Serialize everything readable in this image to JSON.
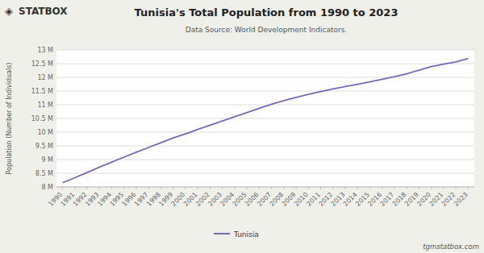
{
  "chart_data": {
    "type": "line",
    "title": "Tunisia's Total Population from 1990 to 2023",
    "subtitle": "Data Source: World Development Indicators.",
    "y_label": "Population (Number of Individuals)",
    "annotations": [
      "◈",
      "STATBOX",
      "tgmstatbox.com"
    ],
    "x": [
      1990,
      1991,
      1992,
      1993,
      1994,
      1995,
      1996,
      1997,
      1998,
      1999,
      2000,
      2001,
      2002,
      2003,
      2004,
      2005,
      2006,
      2007,
      2008,
      2009,
      2010,
      2011,
      2012,
      2013,
      2014,
      2015,
      2016,
      2017,
      2018,
      2019,
      2020,
      2021,
      2022,
      2023
    ],
    "series": [
      {
        "name": "Tunisia",
        "color": "#7B68B5",
        "values": [
          8154000,
          8337000,
          8528000,
          8723000,
          8906000,
          9089000,
          9267000,
          9441000,
          9616000,
          9788000,
          9940000,
          10100000,
          10255000,
          10408000,
          10560000,
          10714000,
          10870000,
          11019000,
          11153000,
          11271000,
          11382000,
          11483000,
          11577000,
          11665000,
          11747000,
          11836000,
          11928000,
          12024000,
          12131000,
          12263000,
          12393000,
          12479000,
          12565000,
          12687000
        ]
      }
    ],
    "xlim": [
      1989.5,
      2023.5
    ],
    "xticks": [
      1990,
      1991,
      1992,
      1993,
      1994,
      1995,
      1996,
      1997,
      1998,
      1999,
      2000,
      2001,
      2002,
      2003,
      2004,
      2005,
      2006,
      2007,
      2008,
      2009,
      2010,
      2011,
      2012,
      2013,
      2014,
      2015,
      2016,
      2017,
      2018,
      2019,
      2020,
      2021,
      2022,
      2023
    ],
    "ylim": [
      8000000,
      13000000
    ],
    "yticks": [
      {
        "value": 8000000,
        "label": "8 M"
      },
      {
        "value": 8500000,
        "label": "8.5 M"
      },
      {
        "value": 9000000,
        "label": "9 M"
      },
      {
        "value": 9500000,
        "label": "9.5 M"
      },
      {
        "value": 10000000,
        "label": "10 M"
      },
      {
        "value": 10500000,
        "label": "10.5 M"
      },
      {
        "value": 11000000,
        "label": "11 M"
      },
      {
        "value": 11500000,
        "label": "11.5 M"
      },
      {
        "value": 12000000,
        "label": "12 M"
      },
      {
        "value": 12500000,
        "label": "12.5 M"
      },
      {
        "value": 13000000,
        "label": "13 M"
      }
    ],
    "grid": true,
    "legend": "bottom"
  }
}
